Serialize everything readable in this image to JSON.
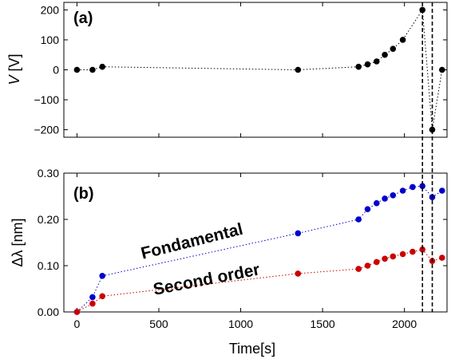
{
  "chart_data": [
    {
      "panel": "(a)",
      "type": "scatter",
      "xlabel": "",
      "ylabel": "V [V]",
      "ylabel_symbol": "V",
      "ylabel_unit": " [V]",
      "xlim": [
        -80,
        2260
      ],
      "ylim": [
        -225,
        225
      ],
      "xticks": [
        0,
        500,
        1000,
        1500,
        2000
      ],
      "yticks": [
        -200,
        -100,
        0,
        100,
        200
      ],
      "ytick_labels": [
        "−200",
        "−100",
        "0",
        "100",
        "200"
      ],
      "series": [
        {
          "color": "#000000",
          "points": [
            [
              0,
              0
            ],
            [
              95,
              0
            ],
            [
              155,
              10
            ],
            [
              1350,
              0
            ],
            [
              1720,
              10
            ],
            [
              1775,
              18
            ],
            [
              1830,
              28
            ],
            [
              1880,
              50
            ],
            [
              1930,
              70
            ],
            [
              1990,
              100
            ],
            [
              2110,
              200
            ],
            [
              2170,
              -200
            ],
            [
              2230,
              0
            ]
          ]
        }
      ]
    },
    {
      "panel": "(b)",
      "type": "scatter",
      "xlabel": "Time[s]",
      "ylabel": "Δλ [nm]",
      "xlim": [
        -80,
        2260
      ],
      "ylim": [
        0,
        0.3
      ],
      "xticks": [
        0,
        500,
        1000,
        1500,
        2000
      ],
      "yticks": [
        0,
        0.1,
        0.2,
        0.3
      ],
      "ytick_labels": [
        "0.00",
        "0.10",
        "0.20",
        "0.30"
      ],
      "series": [
        {
          "name": "Fondamental",
          "color": "#0000cc",
          "points": [
            [
              0,
              0
            ],
            [
              95,
              0.032
            ],
            [
              155,
              0.078
            ],
            [
              1350,
              0.17
            ],
            [
              1720,
              0.2
            ],
            [
              1775,
              0.222
            ],
            [
              1830,
              0.235
            ],
            [
              1880,
              0.245
            ],
            [
              1930,
              0.252
            ],
            [
              1990,
              0.262
            ],
            [
              2050,
              0.27
            ],
            [
              2110,
              0.272
            ],
            [
              2170,
              0.248
            ],
            [
              2230,
              0.262
            ]
          ]
        },
        {
          "name": "Second order",
          "color": "#cc0000",
          "points": [
            [
              0,
              0
            ],
            [
              95,
              0.018
            ],
            [
              155,
              0.034
            ],
            [
              1350,
              0.083
            ],
            [
              1720,
              0.093
            ],
            [
              1775,
              0.1
            ],
            [
              1830,
              0.108
            ],
            [
              1880,
              0.115
            ],
            [
              1930,
              0.12
            ],
            [
              1990,
              0.125
            ],
            [
              2050,
              0.13
            ],
            [
              2110,
              0.135
            ],
            [
              2170,
              0.11
            ],
            [
              2230,
              0.117
            ]
          ]
        }
      ]
    }
  ],
  "vlines": [
    2110,
    2170
  ]
}
